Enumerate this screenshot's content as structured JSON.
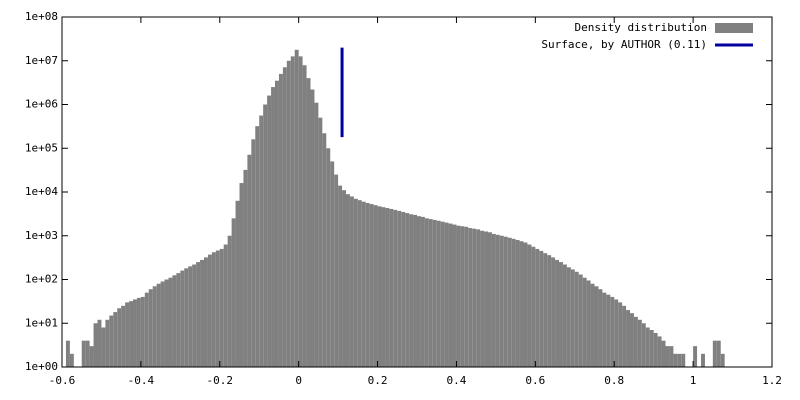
{
  "chart_data": {
    "type": "histogram",
    "bins": [
      -0.59,
      -0.58,
      -0.57,
      -0.56,
      -0.55,
      -0.54,
      -0.53,
      -0.52,
      -0.51,
      -0.5,
      -0.49,
      -0.48,
      -0.47,
      -0.46,
      -0.45,
      -0.44,
      -0.43,
      -0.42,
      -0.41,
      -0.4,
      -0.39,
      -0.38,
      -0.37,
      -0.36,
      -0.35,
      -0.34,
      -0.33,
      -0.32,
      -0.31,
      -0.3,
      -0.29,
      -0.28,
      -0.27,
      -0.26,
      -0.25,
      -0.24,
      -0.23,
      -0.22,
      -0.21,
      -0.2,
      -0.19,
      -0.18,
      -0.17,
      -0.16,
      -0.15,
      -0.14,
      -0.13,
      -0.12,
      -0.11,
      -0.1,
      -0.09,
      -0.08,
      -0.07,
      -0.06,
      -0.05,
      -0.04,
      -0.03,
      -0.02,
      -0.01,
      0,
      0.01,
      0.02,
      0.03,
      0.04,
      0.05,
      0.06,
      0.07,
      0.08,
      0.09,
      0.1,
      0.11,
      0.12,
      0.13,
      0.14,
      0.15,
      0.16,
      0.17,
      0.18,
      0.19,
      0.2,
      0.21,
      0.22,
      0.23,
      0.24,
      0.25,
      0.26,
      0.27,
      0.28,
      0.29,
      0.3,
      0.31,
      0.32,
      0.33,
      0.34,
      0.35,
      0.36,
      0.37,
      0.38,
      0.39,
      0.4,
      0.41,
      0.42,
      0.43,
      0.44,
      0.45,
      0.46,
      0.47,
      0.48,
      0.49,
      0.5,
      0.51,
      0.52,
      0.53,
      0.54,
      0.55,
      0.56,
      0.57,
      0.58,
      0.59,
      0.6,
      0.61,
      0.62,
      0.63,
      0.64,
      0.65,
      0.66,
      0.67,
      0.68,
      0.69,
      0.7,
      0.71,
      0.72,
      0.73,
      0.74,
      0.75,
      0.76,
      0.77,
      0.78,
      0.79,
      0.8,
      0.81,
      0.82,
      0.83,
      0.84,
      0.85,
      0.86,
      0.87,
      0.88,
      0.89,
      0.9,
      0.91,
      0.92,
      0.93,
      0.94,
      0.95,
      0.96,
      0.97,
      0.98,
      0.99,
      1,
      1.01,
      1.02,
      1.03,
      1.04,
      1.05,
      1.06,
      1.07,
      1.08,
      1.09,
      1.1
    ],
    "series": [
      {
        "name": "Density distribution",
        "color": "#808080",
        "values": [
          4,
          2,
          0,
          0,
          4,
          4,
          3,
          10,
          12,
          8,
          12,
          15,
          18,
          22,
          25,
          30,
          32,
          35,
          38,
          40,
          50,
          60,
          70,
          80,
          90,
          100,
          110,
          125,
          140,
          160,
          180,
          200,
          220,
          250,
          280,
          320,
          370,
          420,
          460,
          500,
          630,
          1000,
          2500,
          6300,
          16000,
          32000,
          71000,
          160000,
          320000,
          560000,
          1000000,
          1600000,
          2500000,
          3500000,
          5000000,
          7100000,
          10000000,
          12600000,
          17800000,
          12600000,
          7900000,
          4000000,
          2200000,
          1100000,
          500000,
          220000,
          100000,
          50000,
          25000,
          14000,
          11000,
          8900,
          7900,
          7000,
          6500,
          6000,
          5600,
          5300,
          5000,
          4700,
          4500,
          4300,
          4100,
          3900,
          3700,
          3500,
          3300,
          3100,
          3000,
          2800,
          2700,
          2500,
          2400,
          2300,
          2200,
          2100,
          2000,
          1900,
          1800,
          1700,
          1650,
          1600,
          1500,
          1450,
          1400,
          1300,
          1250,
          1200,
          1100,
          1050,
          1000,
          950,
          900,
          850,
          800,
          750,
          700,
          630,
          560,
          500,
          450,
          400,
          360,
          320,
          280,
          250,
          220,
          190,
          170,
          150,
          130,
          110,
          95,
          80,
          70,
          60,
          50,
          45,
          40,
          35,
          30,
          25,
          20,
          17,
          14,
          12,
          10,
          8,
          7,
          6,
          5,
          4,
          3,
          3,
          2,
          2,
          2,
          1,
          0,
          3,
          0,
          2,
          0,
          0,
          4,
          4,
          2,
          0,
          0
        ]
      }
    ],
    "overlay": {
      "type": "line",
      "name": "Surface, by AUTHOR (0.11)",
      "color": "#0000a0",
      "x": [
        0.11,
        0.11
      ],
      "values": [
        180000,
        20000000
      ]
    },
    "log_y": true,
    "legend": "top-right",
    "xlim": [
      -0.6,
      1.2
    ],
    "xticks": [
      -0.6,
      -0.4,
      -0.2,
      0,
      0.2,
      0.4,
      0.6,
      0.8,
      1,
      1.2
    ],
    "ylim": [
      1,
      100000000
    ],
    "yticks": [
      {
        "value": 1,
        "label": "1e+00"
      },
      {
        "value": 10,
        "label": "1e+01"
      },
      {
        "value": 100,
        "label": "1e+02"
      },
      {
        "value": 1000,
        "label": "1e+03"
      },
      {
        "value": 10000,
        "label": "1e+04"
      },
      {
        "value": 100000,
        "label": "1e+05"
      },
      {
        "value": 1000000,
        "label": "1e+06"
      },
      {
        "value": 10000000,
        "label": "1e+07"
      },
      {
        "value": 100000000,
        "label": "1e+08"
      }
    ]
  }
}
